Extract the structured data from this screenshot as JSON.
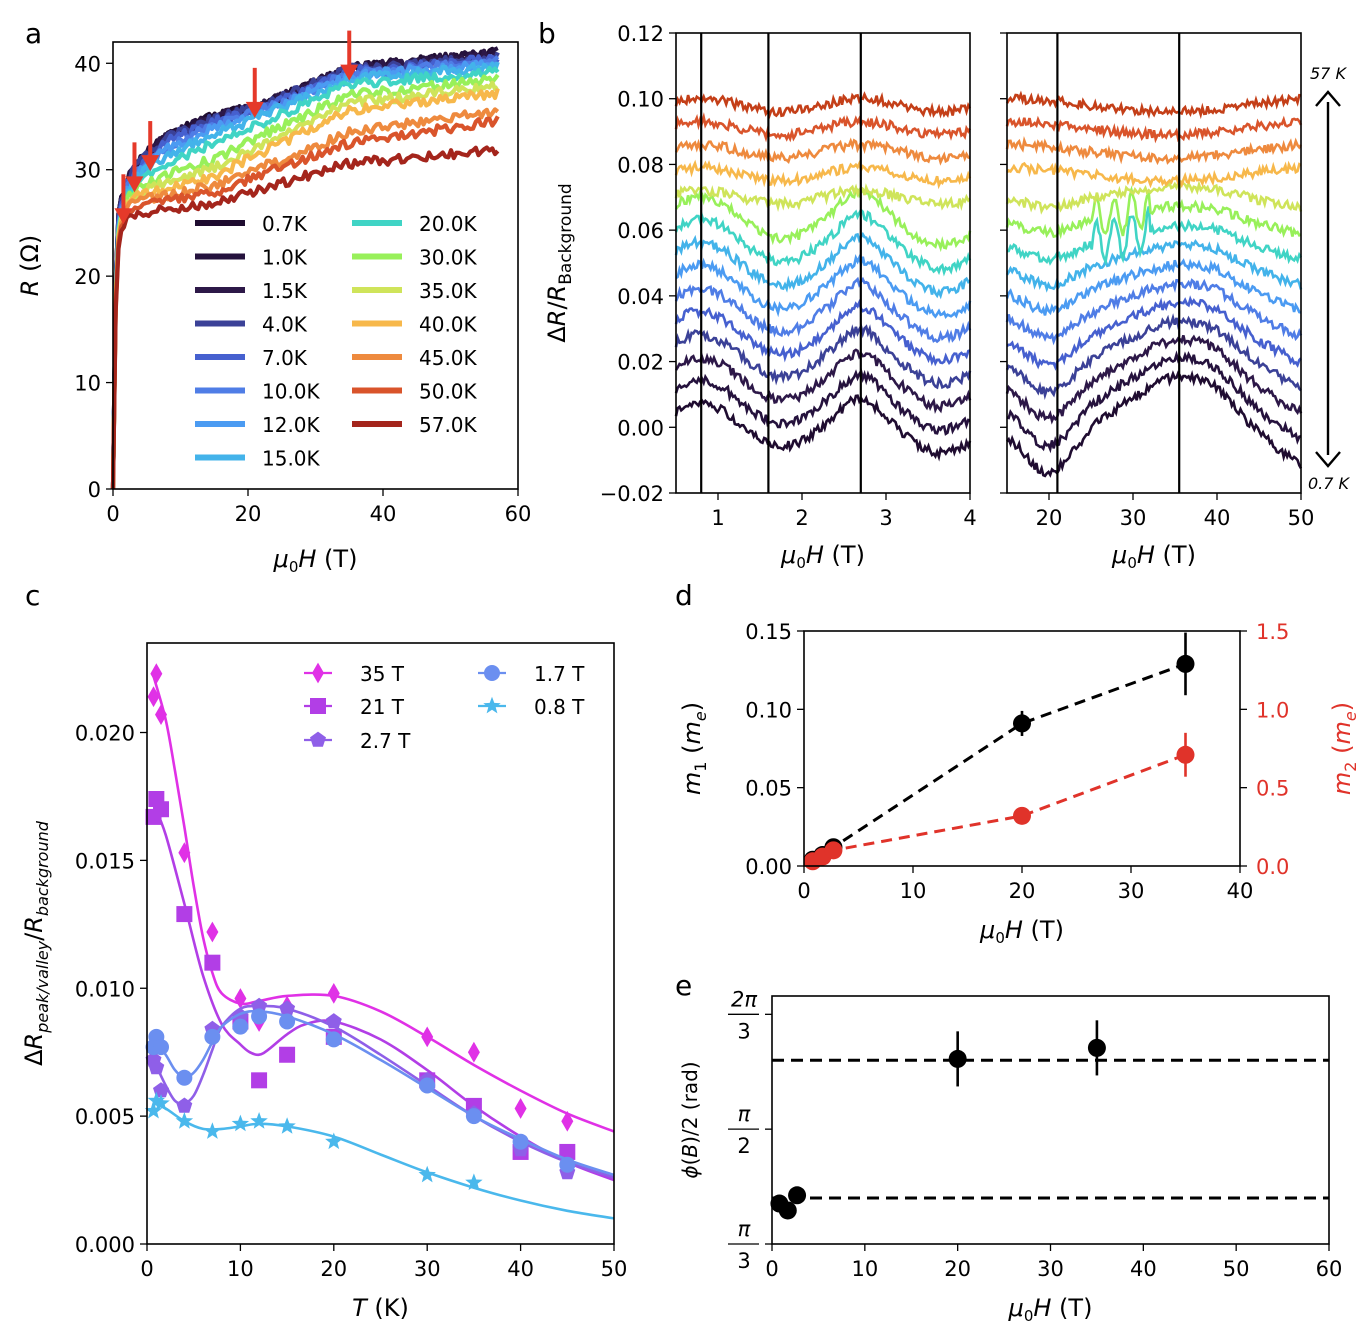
{
  "panels": {
    "a": {
      "label": "a"
    },
    "b": {
      "label": "b",
      "annot_top": "57 K",
      "annot_bottom": "0.7 K"
    },
    "c": {
      "label": "c"
    },
    "d": {
      "label": "d"
    },
    "e": {
      "label": "e"
    }
  },
  "chart_data": [
    {
      "id": "a",
      "type": "line",
      "xlabel": "μ0H (T)",
      "ylabel": "R (Ω)",
      "xlim": [
        0,
        60
      ],
      "ylim": [
        0,
        42
      ],
      "xticks": [
        0,
        20,
        40,
        60
      ],
      "yticks": [
        0,
        10,
        20,
        30,
        40
      ],
      "arrows_at_field_T": [
        0.8,
        1.7,
        2.7,
        21,
        35
      ],
      "legend": [
        "0.7K",
        "1.0K",
        "1.5K",
        "4.0K",
        "7.0K",
        "10.0K",
        "12.0K",
        "15.0K",
        "20.0K",
        "30.0K",
        "35.0K",
        "40.0K",
        "45.0K",
        "50.0K",
        "57.0K"
      ],
      "legend_colors": [
        "#1f0c30",
        "#25123d",
        "#2d1848",
        "#3b4197",
        "#4660cf",
        "#4f7de6",
        "#4b9bf2",
        "#43b3ea",
        "#40d4c5",
        "#98f05a",
        "#cfe45a",
        "#f7b84b",
        "#ee8a3e",
        "#d9542b",
        "#a4251c"
      ],
      "series": [
        {
          "name": "0.7K",
          "x": [
            0,
            0.5,
            1,
            2,
            4,
            8,
            15,
            22,
            35,
            57
          ],
          "y": [
            0,
            24,
            27,
            29,
            31,
            33.2,
            35,
            36,
            39.5,
            41
          ]
        },
        {
          "name": "1.0K",
          "x": [
            0,
            0.5,
            1,
            2,
            4,
            8,
            15,
            22,
            35,
            57
          ],
          "y": [
            0,
            24,
            27,
            29,
            31,
            33.2,
            35,
            36,
            39.5,
            41
          ]
        },
        {
          "name": "1.5K",
          "x": [
            0,
            0.5,
            1,
            2,
            4,
            8,
            15,
            22,
            35,
            57
          ],
          "y": [
            0,
            24,
            27,
            29,
            31,
            33.1,
            34.9,
            36,
            39.5,
            40.8
          ]
        },
        {
          "name": "4.0K",
          "x": [
            0,
            0.5,
            1,
            2,
            4,
            8,
            15,
            22,
            35,
            57
          ],
          "y": [
            0,
            23.5,
            26.7,
            28.8,
            30.8,
            33,
            34.8,
            36,
            39.4,
            40.6
          ]
        },
        {
          "name": "7.0K",
          "x": [
            0,
            0.5,
            1,
            2,
            4,
            8,
            15,
            22,
            35,
            57
          ],
          "y": [
            0,
            23,
            26.3,
            28.5,
            30.5,
            32.6,
            34.5,
            35.8,
            39.2,
            40.4
          ]
        },
        {
          "name": "10.0K",
          "x": [
            0,
            0.5,
            1,
            2,
            4,
            8,
            15,
            22,
            35,
            57
          ],
          "y": [
            0,
            22.8,
            26,
            28.2,
            30.2,
            32.2,
            34.2,
            35.6,
            39,
            40.2
          ]
        },
        {
          "name": "12.0K",
          "x": [
            0,
            0.5,
            1,
            2,
            4,
            8,
            15,
            22,
            35,
            57
          ],
          "y": [
            0,
            22.6,
            25.8,
            28,
            30,
            31.9,
            33.9,
            35.4,
            38.8,
            40
          ]
        },
        {
          "name": "15.0K",
          "x": [
            0,
            0.5,
            1,
            2,
            4,
            8,
            15,
            22,
            35,
            57
          ],
          "y": [
            0,
            22.4,
            25.6,
            27.8,
            29.6,
            31.4,
            33.4,
            35,
            38.5,
            39.7
          ]
        },
        {
          "name": "20.0K",
          "x": [
            0,
            0.5,
            1,
            2,
            4,
            8,
            15,
            22,
            35,
            57
          ],
          "y": [
            0,
            22.2,
            25.4,
            27.5,
            29.1,
            30.6,
            32.5,
            34.4,
            38,
            39.2
          ]
        },
        {
          "name": "30.0K",
          "x": [
            0,
            0.5,
            1,
            2,
            4,
            8,
            15,
            22,
            35,
            57
          ],
          "y": [
            0,
            22,
            25.2,
            27.2,
            28.4,
            29.5,
            31,
            33.2,
            37,
            38.5
          ]
        },
        {
          "name": "35.0K",
          "x": [
            0,
            0.5,
            1,
            2,
            4,
            8,
            15,
            22,
            35,
            57
          ],
          "y": [
            0,
            21.8,
            25,
            27,
            28,
            28.8,
            30.2,
            32.4,
            36.3,
            37.8
          ]
        },
        {
          "name": "40.0K",
          "x": [
            0,
            0.5,
            1,
            2,
            4,
            8,
            15,
            22,
            35,
            57
          ],
          "y": [
            0,
            21.6,
            24.8,
            26.8,
            27.6,
            28.2,
            29.4,
            31.6,
            35.6,
            37.2
          ]
        },
        {
          "name": "45.0K",
          "x": [
            0,
            0.5,
            1,
            2,
            4,
            8,
            15,
            22,
            35,
            57
          ],
          "y": [
            0,
            21.3,
            24.5,
            26.5,
            27.2,
            27.5,
            28.5,
            30.2,
            33.5,
            35.5
          ]
        },
        {
          "name": "50.0K",
          "x": [
            0,
            0.5,
            1,
            2,
            4,
            8,
            15,
            22,
            35,
            57
          ],
          "y": [
            0,
            21,
            24.2,
            26.2,
            26.9,
            27.1,
            27.9,
            29.5,
            32.5,
            34.6
          ]
        },
        {
          "name": "57.0K",
          "x": [
            0,
            0.5,
            1,
            2,
            4,
            8,
            15,
            22,
            35,
            57
          ],
          "y": [
            0,
            20.5,
            23.8,
            25.8,
            26,
            26.3,
            26.8,
            28.2,
            30.6,
            31.8
          ]
        }
      ]
    },
    {
      "id": "b_left",
      "type": "line",
      "xlabel": "μ0H (T)",
      "ylabel": "ΔR/R_Background",
      "xlim": [
        0.5,
        4
      ],
      "ylim": [
        -0.02,
        0.12
      ],
      "xticks": [
        1,
        2,
        3,
        4
      ],
      "yticks": [
        -0.02,
        0.0,
        0.02,
        0.04,
        0.06,
        0.08,
        0.1,
        0.12
      ],
      "ytick_labels": [
        "−0.02",
        "0.00",
        "0.02",
        "0.04",
        "0.06",
        "0.08",
        "0.10",
        "0.12"
      ],
      "vlines": [
        0.8,
        1.6,
        2.7
      ],
      "curve_offsets": [
        0.0,
        0.007,
        0.014,
        0.021,
        0.028,
        0.035,
        0.042,
        0.049,
        0.056,
        0.063,
        0.07,
        0.077,
        0.084,
        0.091,
        0.098
      ],
      "curve_colors": [
        "#1f0c30",
        "#25123d",
        "#2d1848",
        "#3b4197",
        "#4660cf",
        "#4f7de6",
        "#4b9bf2",
        "#43b3ea",
        "#40d4c5",
        "#98f05a",
        "#cfe45a",
        "#f7b84b",
        "#ee8a3e",
        "#d9542b",
        "#c43f18"
      ]
    },
    {
      "id": "b_right",
      "type": "line",
      "xlabel": "μ0H (T)",
      "xlim": [
        15,
        50
      ],
      "ylim": [
        -0.02,
        0.12
      ],
      "xticks": [
        20,
        30,
        40,
        50
      ],
      "vlines": [
        21,
        35.5
      ]
    },
    {
      "id": "c",
      "type": "scatter",
      "xlabel": "T (K)",
      "ylabel": "ΔR_peak/valley/R_background",
      "xlim": [
        0,
        50
      ],
      "ylim": [
        0,
        0.0235
      ],
      "xticks": [
        0,
        10,
        20,
        30,
        40,
        50
      ],
      "yticks": [
        0.0,
        0.005,
        0.01,
        0.015,
        0.02
      ],
      "ytick_labels": [
        "0.000",
        "0.005",
        "0.010",
        "0.015",
        "0.020"
      ],
      "series": [
        {
          "name": "35 T",
          "marker": "diamond",
          "color": "#e031e6",
          "x": [
            0.7,
            1.0,
            1.5,
            4,
            7,
            10,
            12,
            15,
            20,
            30,
            35,
            40,
            45
          ],
          "y": [
            0.0214,
            0.0223,
            0.0207,
            0.0153,
            0.0122,
            0.0096,
            0.0087,
            0.0093,
            0.0098,
            0.0081,
            0.0075,
            0.0053,
            0.0048
          ],
          "fit_x": [
            0.7,
            2,
            3,
            4,
            5,
            6,
            7,
            8,
            10,
            12,
            15,
            20,
            25,
            30,
            35,
            40,
            45,
            50
          ],
          "fit_y": [
            0.0222,
            0.0205,
            0.0185,
            0.0163,
            0.014,
            0.012,
            0.0106,
            0.0098,
            0.0094,
            0.0095,
            0.0097,
            0.0097,
            0.0091,
            0.0081,
            0.007,
            0.006,
            0.0051,
            0.0044
          ]
        },
        {
          "name": "21 T",
          "marker": "square",
          "color": "#b23ee6",
          "x": [
            0.7,
            1.0,
            1.5,
            4,
            7,
            10,
            12,
            15,
            20,
            30,
            35,
            40,
            45
          ],
          "y": [
            0.0167,
            0.0174,
            0.017,
            0.0129,
            0.011,
            0.0087,
            0.0064,
            0.0074,
            0.0081,
            0.0064,
            0.0054,
            0.0036,
            0.0036
          ],
          "fit_x": [
            0.7,
            2,
            4,
            6,
            8,
            10,
            11,
            12,
            13,
            15,
            17,
            20,
            25,
            30,
            35,
            40,
            45,
            50
          ],
          "fit_y": [
            0.0172,
            0.016,
            0.0133,
            0.0105,
            0.0086,
            0.0078,
            0.0075,
            0.0074,
            0.0076,
            0.0082,
            0.0086,
            0.0087,
            0.008,
            0.0068,
            0.0054,
            0.0042,
            0.0032,
            0.0025
          ]
        },
        {
          "name": "2.7 T",
          "marker": "pentagon",
          "color": "#8f5fe8",
          "x": [
            0.7,
            1.0,
            1.5,
            4,
            7,
            10,
            12,
            15,
            20,
            30,
            35,
            40,
            45
          ],
          "y": [
            0.0072,
            0.0069,
            0.006,
            0.0054,
            0.0084,
            0.0089,
            0.0093,
            0.0092,
            0.0087,
            0.0064,
            0.0051,
            0.0037,
            0.0028
          ],
          "fit_x": [
            0.7,
            2,
            3,
            4,
            5,
            6,
            7,
            8,
            10,
            12,
            15,
            20,
            25,
            30,
            35,
            40,
            45,
            50
          ],
          "fit_y": [
            0.0072,
            0.0062,
            0.0056,
            0.0055,
            0.0058,
            0.0066,
            0.0076,
            0.0085,
            0.0092,
            0.0093,
            0.0092,
            0.0085,
            0.0074,
            0.0062,
            0.005,
            0.004,
            0.0032,
            0.0026
          ]
        },
        {
          "name": "1.7 T",
          "marker": "circle",
          "color": "#6b8ff0",
          "x": [
            0.7,
            1.0,
            1.5,
            4,
            7,
            10,
            12,
            15,
            20,
            30,
            35,
            40,
            45
          ],
          "y": [
            0.0077,
            0.0081,
            0.0077,
            0.0065,
            0.0081,
            0.0085,
            0.0089,
            0.0087,
            0.008,
            0.0062,
            0.005,
            0.004,
            0.0031
          ],
          "fit_x": [
            0.7,
            2,
            3,
            4,
            5,
            6,
            7,
            8,
            10,
            12,
            15,
            20,
            25,
            30,
            35,
            40,
            45,
            50
          ],
          "fit_y": [
            0.008,
            0.0074,
            0.0068,
            0.0065,
            0.0067,
            0.0072,
            0.0079,
            0.0085,
            0.009,
            0.0091,
            0.0089,
            0.0082,
            0.0072,
            0.0061,
            0.005,
            0.0041,
            0.0033,
            0.0027
          ]
        },
        {
          "name": "0.8 T",
          "marker": "star",
          "color": "#4ab8ec",
          "x": [
            0.7,
            1.0,
            1.5,
            4,
            7,
            10,
            12,
            15,
            20,
            30,
            35
          ],
          "y": [
            0.0052,
            0.0056,
            0.0055,
            0.0048,
            0.0044,
            0.0047,
            0.0048,
            0.0046,
            0.004,
            0.0027,
            0.0024
          ],
          "fit_x": [
            0.7,
            2,
            4,
            6,
            8,
            10,
            12,
            15,
            20,
            25,
            30,
            35,
            40,
            45,
            50
          ],
          "fit_y": [
            0.0055,
            0.0053,
            0.0048,
            0.0045,
            0.0045,
            0.0046,
            0.0047,
            0.0046,
            0.0042,
            0.0035,
            0.0028,
            0.0022,
            0.0017,
            0.0013,
            0.001
          ]
        }
      ]
    },
    {
      "id": "d",
      "type": "scatter",
      "xlabel": "μ0H (T)",
      "ylabel": "m1 (me)",
      "ylabel_right": "m2 (me)",
      "xlim": [
        0,
        40
      ],
      "ylim": [
        0,
        0.15
      ],
      "ylim_right": [
        0,
        1.5
      ],
      "xticks": [
        0,
        10,
        20,
        30,
        40
      ],
      "yticks": [
        0.0,
        0.05,
        0.1,
        0.15
      ],
      "ytick_labels": [
        "0.00",
        "0.05",
        "0.10",
        "0.15"
      ],
      "yticks_right": [
        0.0,
        0.5,
        1.0,
        1.5
      ],
      "ytick_labels_right": [
        "0.0",
        "0.5",
        "1.0",
        "1.5"
      ],
      "series": [
        {
          "name": "m1",
          "axis": "left",
          "color": "#000000",
          "x": [
            0.8,
            1.7,
            2.7,
            20,
            35
          ],
          "y": [
            0.004,
            0.007,
            0.012,
            0.091,
            0.129
          ],
          "err": [
            0.001,
            0.001,
            0.002,
            0.008,
            0.02
          ]
        },
        {
          "name": "m2",
          "axis": "right",
          "color": "#e0332a",
          "x": [
            0.8,
            1.7,
            2.7,
            20,
            35
          ],
          "y": [
            0.03,
            0.06,
            0.1,
            0.32,
            0.71
          ],
          "err": [
            0.01,
            0.02,
            0.02,
            0.05,
            0.14
          ]
        }
      ]
    },
    {
      "id": "e",
      "type": "scatter",
      "xlabel": "μ0H (T)",
      "ylabel": "ϕ(B)/2 (rad)",
      "xlim": [
        0,
        60
      ],
      "ylim_over_pi": [
        0.3333,
        0.6933
      ],
      "xticks": [
        0,
        10,
        20,
        30,
        40,
        50,
        60
      ],
      "ytick_values_over_pi": [
        0.3333,
        0.5,
        0.6667
      ],
      "ytick_labels": [
        {
          "num": "π",
          "den": "3"
        },
        {
          "num": "π",
          "den": "2"
        },
        {
          "num": "2π",
          "den": "3"
        }
      ],
      "hlines_over_pi": [
        0.4,
        0.6
      ],
      "series": [
        {
          "name": "phase",
          "color": "#000000",
          "x": [
            0.8,
            1.7,
            2.7,
            20,
            35
          ],
          "y_over_pi": [
            0.392,
            0.382,
            0.404,
            0.602,
            0.618
          ],
          "err_over_pi": [
            0.01,
            0.01,
            0.008,
            0.04,
            0.04
          ]
        }
      ]
    }
  ]
}
